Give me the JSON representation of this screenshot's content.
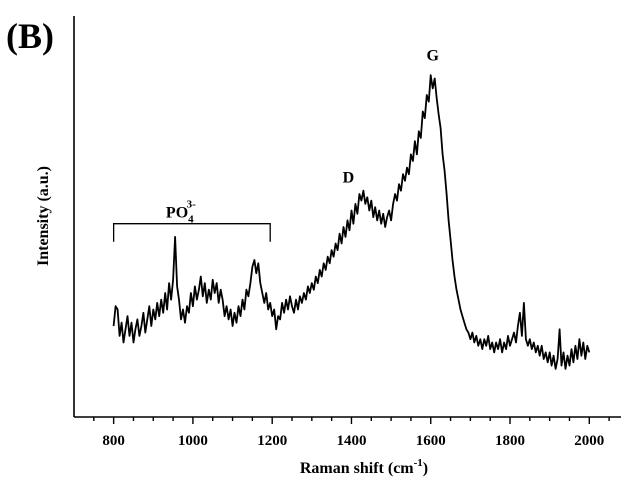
{
  "panel_label": "(B)",
  "chart_data": {
    "type": "line",
    "title": "",
    "xlabel": "Raman shift (cm",
    "xlabel_sup": "-1",
    "xlabel_close": ")",
    "ylabel": "Intensity (a.u.)",
    "xlim": [
      700,
      2080
    ],
    "ylim": [
      0,
      100
    ],
    "x_ticks": [
      800,
      1000,
      1200,
      1400,
      1600,
      1800,
      2000
    ],
    "x_tick_labels": [
      "800",
      "1000",
      "1200",
      "1400",
      "1600",
      "1800",
      "2000"
    ],
    "show_y_ticks": false,
    "grid": false,
    "line_color": "#000000",
    "annotations": {
      "phosphate": {
        "base": "PO",
        "sub": "4",
        "sup": "3-",
        "x_from": 800,
        "x_to": 1195,
        "y": 51
      },
      "d_band": {
        "text": "D",
        "x": 1425,
        "y": 61
      },
      "g_band": {
        "text": "G",
        "x": 1605,
        "y": 98
      }
    },
    "series": [
      {
        "values": [
          [
            800,
            20
          ],
          [
            805,
            26
          ],
          [
            810,
            25
          ],
          [
            815,
            17
          ],
          [
            820,
            21
          ],
          [
            825,
            15
          ],
          [
            830,
            19
          ],
          [
            835,
            23
          ],
          [
            840,
            17
          ],
          [
            845,
            21
          ],
          [
            850,
            15
          ],
          [
            855,
            19
          ],
          [
            860,
            22
          ],
          [
            865,
            17
          ],
          [
            870,
            20
          ],
          [
            875,
            24
          ],
          [
            880,
            18
          ],
          [
            885,
            22
          ],
          [
            890,
            26
          ],
          [
            895,
            20
          ],
          [
            900,
            25
          ],
          [
            905,
            22
          ],
          [
            910,
            27
          ],
          [
            915,
            23
          ],
          [
            920,
            28
          ],
          [
            925,
            24
          ],
          [
            930,
            30
          ],
          [
            935,
            25
          ],
          [
            940,
            33
          ],
          [
            945,
            28
          ],
          [
            950,
            34
          ],
          [
            955,
            47
          ],
          [
            960,
            32
          ],
          [
            965,
            28
          ],
          [
            970,
            22
          ],
          [
            975,
            25
          ],
          [
            980,
            21
          ],
          [
            985,
            26
          ],
          [
            990,
            24
          ],
          [
            995,
            30
          ],
          [
            1000,
            26
          ],
          [
            1005,
            32
          ],
          [
            1010,
            28
          ],
          [
            1015,
            31
          ],
          [
            1020,
            35
          ],
          [
            1025,
            29
          ],
          [
            1030,
            33
          ],
          [
            1035,
            27
          ],
          [
            1040,
            31
          ],
          [
            1045,
            28
          ],
          [
            1050,
            34
          ],
          [
            1055,
            30
          ],
          [
            1060,
            33
          ],
          [
            1065,
            27
          ],
          [
            1070,
            31
          ],
          [
            1075,
            28
          ],
          [
            1080,
            23
          ],
          [
            1085,
            26
          ],
          [
            1090,
            22
          ],
          [
            1095,
            25
          ],
          [
            1100,
            20
          ],
          [
            1105,
            24
          ],
          [
            1110,
            21
          ],
          [
            1115,
            26
          ],
          [
            1120,
            23
          ],
          [
            1125,
            28
          ],
          [
            1130,
            25
          ],
          [
            1135,
            31
          ],
          [
            1140,
            29
          ],
          [
            1145,
            33
          ],
          [
            1150,
            38
          ],
          [
            1155,
            40
          ],
          [
            1160,
            36
          ],
          [
            1165,
            39
          ],
          [
            1170,
            33
          ],
          [
            1175,
            30
          ],
          [
            1180,
            27
          ],
          [
            1185,
            30
          ],
          [
            1190,
            25
          ],
          [
            1195,
            27
          ],
          [
            1200,
            23
          ],
          [
            1205,
            25
          ],
          [
            1210,
            19
          ],
          [
            1215,
            23
          ],
          [
            1220,
            22
          ],
          [
            1225,
            27
          ],
          [
            1230,
            24
          ],
          [
            1235,
            28
          ],
          [
            1240,
            25
          ],
          [
            1245,
            29
          ],
          [
            1250,
            26
          ],
          [
            1255,
            24
          ],
          [
            1260,
            28
          ],
          [
            1265,
            25
          ],
          [
            1270,
            29
          ],
          [
            1275,
            27
          ],
          [
            1280,
            30
          ],
          [
            1285,
            28
          ],
          [
            1290,
            32
          ],
          [
            1295,
            30
          ],
          [
            1300,
            33
          ],
          [
            1305,
            31
          ],
          [
            1310,
            35
          ],
          [
            1315,
            33
          ],
          [
            1320,
            37
          ],
          [
            1325,
            35
          ],
          [
            1330,
            39
          ],
          [
            1335,
            37
          ],
          [
            1340,
            41
          ],
          [
            1345,
            39
          ],
          [
            1350,
            43
          ],
          [
            1355,
            41
          ],
          [
            1360,
            45
          ],
          [
            1365,
            43
          ],
          [
            1370,
            48
          ],
          [
            1375,
            45
          ],
          [
            1380,
            50
          ],
          [
            1385,
            47
          ],
          [
            1390,
            52
          ],
          [
            1395,
            49
          ],
          [
            1400,
            55
          ],
          [
            1405,
            51
          ],
          [
            1410,
            57
          ],
          [
            1415,
            54
          ],
          [
            1420,
            60
          ],
          [
            1425,
            58
          ],
          [
            1430,
            61
          ],
          [
            1435,
            57
          ],
          [
            1440,
            59
          ],
          [
            1445,
            55
          ],
          [
            1450,
            58
          ],
          [
            1455,
            53
          ],
          [
            1460,
            56
          ],
          [
            1465,
            52
          ],
          [
            1470,
            55
          ],
          [
            1475,
            51
          ],
          [
            1480,
            54
          ],
          [
            1485,
            50
          ],
          [
            1490,
            53
          ],
          [
            1495,
            55
          ],
          [
            1500,
            52
          ],
          [
            1505,
            57
          ],
          [
            1510,
            60
          ],
          [
            1515,
            58
          ],
          [
            1520,
            63
          ],
          [
            1525,
            61
          ],
          [
            1530,
            66
          ],
          [
            1535,
            64
          ],
          [
            1540,
            68
          ],
          [
            1545,
            66
          ],
          [
            1550,
            72
          ],
          [
            1555,
            70
          ],
          [
            1560,
            76
          ],
          [
            1565,
            72
          ],
          [
            1570,
            79
          ],
          [
            1575,
            77
          ],
          [
            1580,
            85
          ],
          [
            1585,
            83
          ],
          [
            1590,
            90
          ],
          [
            1595,
            88
          ],
          [
            1600,
            96
          ],
          [
            1605,
            92
          ],
          [
            1610,
            95
          ],
          [
            1615,
            89
          ],
          [
            1620,
            84
          ],
          [
            1625,
            80
          ],
          [
            1630,
            72
          ],
          [
            1635,
            67
          ],
          [
            1640,
            60
          ],
          [
            1645,
            52
          ],
          [
            1650,
            46
          ],
          [
            1655,
            40
          ],
          [
            1660,
            35
          ],
          [
            1665,
            31
          ],
          [
            1670,
            28
          ],
          [
            1675,
            25
          ],
          [
            1680,
            23
          ],
          [
            1685,
            21
          ],
          [
            1690,
            19
          ],
          [
            1695,
            18
          ],
          [
            1700,
            16
          ],
          [
            1705,
            18
          ],
          [
            1710,
            15
          ],
          [
            1715,
            17
          ],
          [
            1720,
            14
          ],
          [
            1725,
            16
          ],
          [
            1730,
            13
          ],
          [
            1735,
            16
          ],
          [
            1740,
            14
          ],
          [
            1745,
            17
          ],
          [
            1750,
            13
          ],
          [
            1755,
            15
          ],
          [
            1760,
            12
          ],
          [
            1765,
            15
          ],
          [
            1770,
            13
          ],
          [
            1775,
            16
          ],
          [
            1780,
            12
          ],
          [
            1785,
            15
          ],
          [
            1790,
            13
          ],
          [
            1795,
            17
          ],
          [
            1800,
            14
          ],
          [
            1805,
            16
          ],
          [
            1810,
            18
          ],
          [
            1815,
            15
          ],
          [
            1820,
            20
          ],
          [
            1825,
            24
          ],
          [
            1830,
            17
          ],
          [
            1835,
            27
          ],
          [
            1840,
            16
          ],
          [
            1845,
            14
          ],
          [
            1850,
            16
          ],
          [
            1855,
            13
          ],
          [
            1860,
            15
          ],
          [
            1865,
            12
          ],
          [
            1870,
            14
          ],
          [
            1875,
            11
          ],
          [
            1880,
            14
          ],
          [
            1885,
            10
          ],
          [
            1890,
            12
          ],
          [
            1895,
            9
          ],
          [
            1900,
            12
          ],
          [
            1905,
            8
          ],
          [
            1910,
            11
          ],
          [
            1915,
            7
          ],
          [
            1920,
            10
          ],
          [
            1925,
            19
          ],
          [
            1930,
            8
          ],
          [
            1935,
            12
          ],
          [
            1940,
            7
          ],
          [
            1945,
            11
          ],
          [
            1950,
            8
          ],
          [
            1955,
            13
          ],
          [
            1960,
            9
          ],
          [
            1965,
            14
          ],
          [
            1970,
            10
          ],
          [
            1975,
            16
          ],
          [
            1980,
            11
          ],
          [
            1985,
            15
          ],
          [
            1990,
            10
          ],
          [
            1995,
            14
          ],
          [
            2000,
            12
          ]
        ]
      }
    ]
  }
}
